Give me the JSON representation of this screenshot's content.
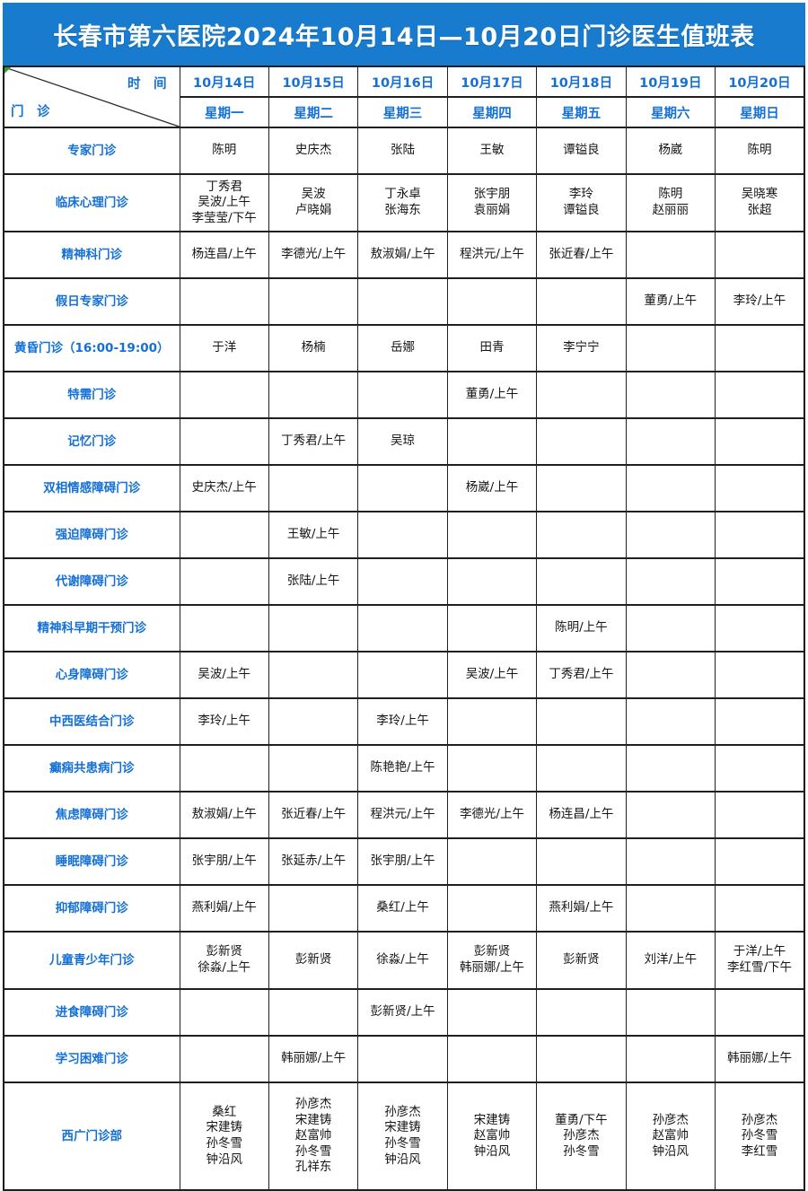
{
  "title": {
    "text": "长春市第六医院2024年10月14日—10月20日门诊医生值班表"
  },
  "colors": {
    "banner_bg": "#187BCD",
    "banner_text": "#ffffff",
    "header_text": "#1470D6",
    "label_text": "#1470D6",
    "cell_text": "#151515",
    "grid_line": "#1f1f1f",
    "comment_marker": "#2F9E2F"
  },
  "corner": {
    "time_label": "时　间",
    "clinic_label": "门　诊"
  },
  "days": [
    {
      "date": "10月14日",
      "weekday": "星期一"
    },
    {
      "date": "10月15日",
      "weekday": "星期二"
    },
    {
      "date": "10月16日",
      "weekday": "星期三"
    },
    {
      "date": "10月17日",
      "weekday": "星期四"
    },
    {
      "date": "10月18日",
      "weekday": "星期五"
    },
    {
      "date": "10月19日",
      "weekday": "星期六"
    },
    {
      "date": "10月20日",
      "weekday": "星期日"
    }
  ],
  "rows": [
    {
      "label": "专家门诊",
      "cells": [
        "陈明",
        "史庆杰",
        "张陆",
        "王敏",
        "谭镒良",
        "杨崴",
        "陈明"
      ]
    },
    {
      "label": "临床心理门诊",
      "cells": [
        "丁秀君\n吴波/上午\n李莹莹/下午",
        "吴波\n卢晓娟",
        "丁永卓\n张海东",
        "张宇朋\n袁丽娟",
        "李玲\n谭镒良",
        "陈明\n赵丽丽",
        "吴晓寒\n张超"
      ]
    },
    {
      "label": "精神科门诊",
      "cells": [
        "杨连昌/上午",
        "李德光/上午",
        "敖淑娟/上午",
        "程洪元/上午",
        "张近春/上午",
        "",
        ""
      ]
    },
    {
      "label": "假日专家门诊",
      "cells": [
        "",
        "",
        "",
        "",
        "",
        "董勇/上午",
        "李玲/上午"
      ]
    },
    {
      "label": "黄昏门诊（16:00-19:00）",
      "cells": [
        "于洋",
        "杨楠",
        "岳娜",
        "田青",
        "李宁宁",
        "",
        ""
      ]
    },
    {
      "label": "特需门诊",
      "cells": [
        "",
        "",
        "",
        "董勇/上午",
        "",
        "",
        ""
      ]
    },
    {
      "label": "记忆门诊",
      "cells": [
        "",
        "丁秀君/上午",
        "吴琼",
        "",
        "",
        "",
        ""
      ]
    },
    {
      "label": "双相情感障碍门诊",
      "cells": [
        "史庆杰/上午",
        "",
        "",
        "杨崴/上午",
        "",
        "",
        ""
      ]
    },
    {
      "label": "强迫障碍门诊",
      "cells": [
        "",
        "王敏/上午",
        "",
        "",
        "",
        "",
        ""
      ]
    },
    {
      "label": "代谢障碍门诊",
      "cells": [
        "",
        "张陆/上午",
        "",
        "",
        "",
        "",
        ""
      ]
    },
    {
      "label": "精神科早期干预门诊",
      "cells": [
        "",
        "",
        "",
        "",
        "陈明/上午",
        "",
        ""
      ]
    },
    {
      "label": "心身障碍门诊",
      "cells": [
        "吴波/上午",
        "",
        "",
        "吴波/上午",
        "丁秀君/上午",
        "",
        ""
      ]
    },
    {
      "label": "中西医结合门诊",
      "cells": [
        "李玲/上午",
        "",
        "李玲/上午",
        "",
        "",
        "",
        ""
      ]
    },
    {
      "label": "癫痫共患病门诊",
      "cells": [
        "",
        "",
        "陈艳艳/上午",
        "",
        "",
        "",
        ""
      ]
    },
    {
      "label": "焦虑障碍门诊",
      "cells": [
        "敖淑娟/上午",
        "张近春/上午",
        "程洪元/上午",
        "李德光/上午",
        "杨连昌/上午",
        "",
        ""
      ]
    },
    {
      "label": "睡眠障碍门诊",
      "cells": [
        "张宇朋/上午",
        "张延赤/上午",
        "张宇朋/上午",
        "",
        "",
        "",
        ""
      ]
    },
    {
      "label": "抑郁障碍门诊",
      "cells": [
        "燕利娟/上午",
        "",
        "桑红/上午",
        "",
        "燕利娟/上午",
        "",
        ""
      ]
    },
    {
      "label": "儿童青少年门诊",
      "cells": [
        "彭新贤\n徐淼/上午",
        "彭新贤",
        "徐淼/上午",
        "彭新贤\n韩丽娜/上午",
        "彭新贤",
        "刘洋/上午",
        "于洋/上午\n李红雪/下午"
      ]
    },
    {
      "label": "进食障碍门诊",
      "cells": [
        "",
        "",
        "彭新贤/上午",
        "",
        "",
        "",
        ""
      ]
    },
    {
      "label": "学习困难门诊",
      "cells": [
        "",
        "韩丽娜/上午",
        "",
        "",
        "",
        "",
        "韩丽娜/上午"
      ]
    },
    {
      "label": "西广门诊部",
      "cells": [
        "桑红\n宋建铸\n孙冬雪\n钟沿风",
        "孙彦杰\n宋建铸\n赵富帅\n孙冬雪\n孔祥东",
        "孙彦杰\n宋建铸\n孙冬雪\n钟沿风",
        "宋建铸\n赵富帅\n钟沿风",
        "董勇/下午\n孙彦杰\n孙冬雪",
        "孙彦杰\n赵富帅\n钟沿风",
        "孙彦杰\n孙冬雪\n李红雪"
      ]
    }
  ],
  "comment_markers": {
    "corner": true,
    "cells": [
      [
        15,
        1
      ],
      [
        16,
        2
      ],
      [
        17,
        1
      ]
    ]
  }
}
